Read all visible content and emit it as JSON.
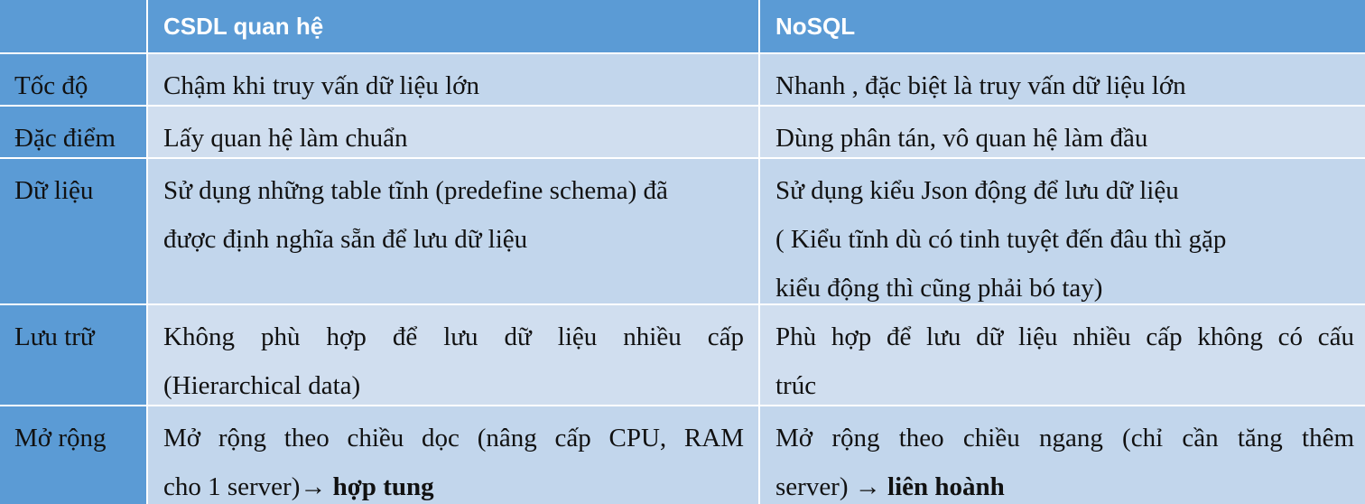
{
  "header": {
    "col1": "CSDL quan hệ",
    "col2": "NoSQL"
  },
  "rows": [
    {
      "label": "Tốc độ",
      "relational": [
        "Chậm khi truy vấn dữ liệu lớn"
      ],
      "nosql": [
        "Nhanh , đặc biệt là truy vấn dữ liệu lớn"
      ]
    },
    {
      "label": "Đặc điểm",
      "relational": [
        "Lấy quan hệ làm chuẩn"
      ],
      "nosql": [
        "Dùng phân tán, vô quan hệ làm đầu"
      ]
    },
    {
      "label": "Dữ liệu",
      "relational": [
        "Sử dụng những table tĩnh (predefine schema) đã",
        "được định nghĩa sẵn để lưu dữ liệu"
      ],
      "nosql": [
        "Sử dụng kiểu Json động để lưu dữ liệu",
        "( Kiểu tĩnh dù có tinh tuyệt đến đâu thì gặp",
        "kiểu động thì cũng phải bó tay)"
      ]
    },
    {
      "label": "Lưu trữ",
      "relational": [
        "Không phù hợp để lưu dữ liệu nhiều cấp",
        "(Hierarchical data)"
      ],
      "nosql": [
        "Phù hợp để lưu dữ liệu nhiều cấp không có cấu",
        "trúc"
      ]
    },
    {
      "label": "Mở rộng",
      "relational": [
        "Mở rộng theo chiều dọc (nâng cấp CPU, RAM"
      ],
      "relational_tail": "cho 1 server)",
      "relational_arrow": "→",
      "relational_bold": "hợp tung",
      "nosql": [
        "Mở rộng theo chiều ngang (chỉ cần tăng thêm"
      ],
      "nosql_tail": "server)",
      "nosql_arrow": "→",
      "nosql_bold": "liên hoành"
    }
  ],
  "colors": {
    "header": "#5b9bd5",
    "header_text": "#ffffff",
    "row_light": "#d0deef",
    "row_mid": "#c2d6ec"
  }
}
